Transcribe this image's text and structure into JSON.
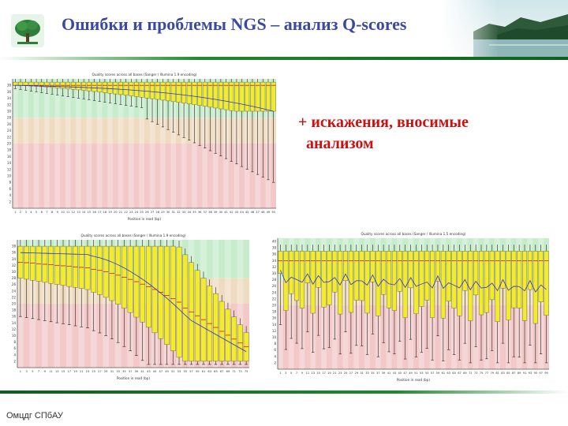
{
  "slide": {
    "title": "Ошибки и проблемы NGS – анализ Q-scores",
    "annotation": "+ искажения, вносимые\n  анализом",
    "footer": "Омцдг СПбАУ"
  },
  "colors": {
    "title": "#3b4a9a",
    "annotation": "#cc1111",
    "header_rule": "#1e8a2e",
    "zone_good": "#c6eccb",
    "zone_ok": "#efdcc0",
    "zone_poor": "#f2c8c8",
    "box_fill": "#f2ec2a",
    "mean_line": "#3333cc"
  },
  "plots": {
    "top": {
      "title": "Quality scores across all bases (Sanger / Illumina 1.9 encoding)",
      "xlabel": "Position in read (bp)",
      "yticks": [
        "2",
        "4",
        "6",
        "8",
        "10",
        "12",
        "14",
        "16",
        "18",
        "20",
        "22",
        "24",
        "26",
        "28",
        "30",
        "32",
        "34",
        "36",
        "38"
      ],
      "xticks": [
        "1",
        "2",
        "3",
        "4",
        "5",
        "6",
        "7",
        "8",
        "9",
        "10",
        "11",
        "12",
        "13",
        "14",
        "15",
        "16",
        "17",
        "18",
        "19",
        "20",
        "21",
        "22",
        "23",
        "24",
        "25",
        "26",
        "27",
        "28",
        "29",
        "30",
        "31",
        "32",
        "33",
        "34",
        "35",
        "36",
        "37",
        "38",
        "39",
        "40",
        "41",
        "42",
        "43",
        "44",
        "45",
        "46",
        "47",
        "48",
        "49",
        "50"
      ]
    },
    "bottom_left": {
      "title": "Quality scores across all bases (Sanger / Illumina 1.9 encoding)",
      "xlabel": "Position in read (bp)",
      "yticks": [
        "2",
        "4",
        "6",
        "8",
        "10",
        "12",
        "14",
        "16",
        "18",
        "20",
        "22",
        "24",
        "26",
        "28",
        "30",
        "32",
        "34",
        "36",
        "38"
      ],
      "xticks": [
        "1",
        "3",
        "5",
        "7",
        "9",
        "11",
        "13",
        "15",
        "17",
        "19",
        "21",
        "23",
        "25",
        "27",
        "29",
        "31",
        "33",
        "35",
        "37",
        "39",
        "41",
        "43",
        "45",
        "47",
        "49",
        "51",
        "53",
        "55",
        "57",
        "59",
        "61",
        "63",
        "65",
        "67",
        "69",
        "71",
        "73",
        "75"
      ]
    },
    "bottom_right": {
      "title": "Quality scores across all bases (Sanger / Illumina 1.5 encoding)",
      "xlabel": "Position in read (bp)",
      "yticks": [
        "2",
        "4",
        "6",
        "8",
        "10",
        "12",
        "14",
        "16",
        "18",
        "20",
        "22",
        "24",
        "26",
        "28",
        "30",
        "32",
        "34",
        "36",
        "38",
        "40"
      ],
      "xticks": [
        "1",
        "3",
        "5",
        "7",
        "9",
        "11",
        "13",
        "15",
        "17",
        "19",
        "21",
        "23",
        "25",
        "27",
        "29",
        "31",
        "33",
        "35",
        "37",
        "39",
        "41",
        "43",
        "45",
        "47",
        "49",
        "51",
        "53",
        "55",
        "57",
        "59",
        "61",
        "63",
        "65",
        "67",
        "69",
        "71",
        "73",
        "75",
        "77",
        "79",
        "81",
        "83",
        "85",
        "87",
        "89",
        "91",
        "93",
        "95",
        "97",
        "99"
      ]
    }
  }
}
